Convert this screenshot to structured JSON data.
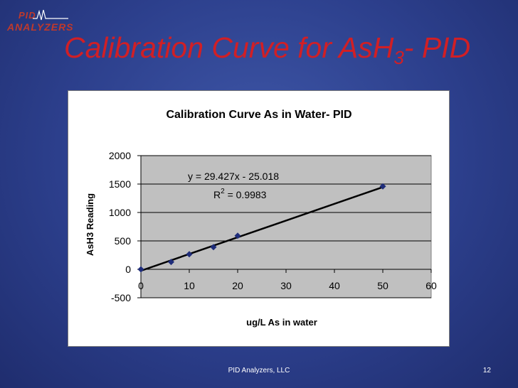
{
  "logo": {
    "line1": "PID",
    "line2": "ANALYZERS"
  },
  "slide": {
    "title_main": "Calibration Curve for AsH",
    "title_sub": "3",
    "title_tail": "- PID",
    "footer": "PID Analyzers, LLC",
    "page_number": "12"
  },
  "chart_data": {
    "type": "scatter",
    "title": "Calibration Curve As in Water- PID",
    "xlabel": "ug/L As in water",
    "ylabel": "AsH3 Reading",
    "xlim": [
      0,
      60
    ],
    "ylim": [
      -500,
      2000
    ],
    "x_ticks": [
      0,
      10,
      20,
      30,
      40,
      50,
      60
    ],
    "y_ticks": [
      -500,
      0,
      500,
      1000,
      1500,
      2000
    ],
    "grid": true,
    "plot_background": "#c0c0c0",
    "marker_color": "#1f2d7a",
    "series": [
      {
        "x": [
          0,
          6.25,
          10,
          15,
          20,
          50
        ],
        "y": [
          0,
          130,
          265,
          390,
          590,
          1460
        ]
      }
    ],
    "trendline": {
      "slope": 29.427,
      "intercept": -25.018,
      "equation": "y = 29.427x - 25.018",
      "r2_label": "R",
      "r2_sup": "2",
      "r2_value": " = 0.9983"
    }
  }
}
